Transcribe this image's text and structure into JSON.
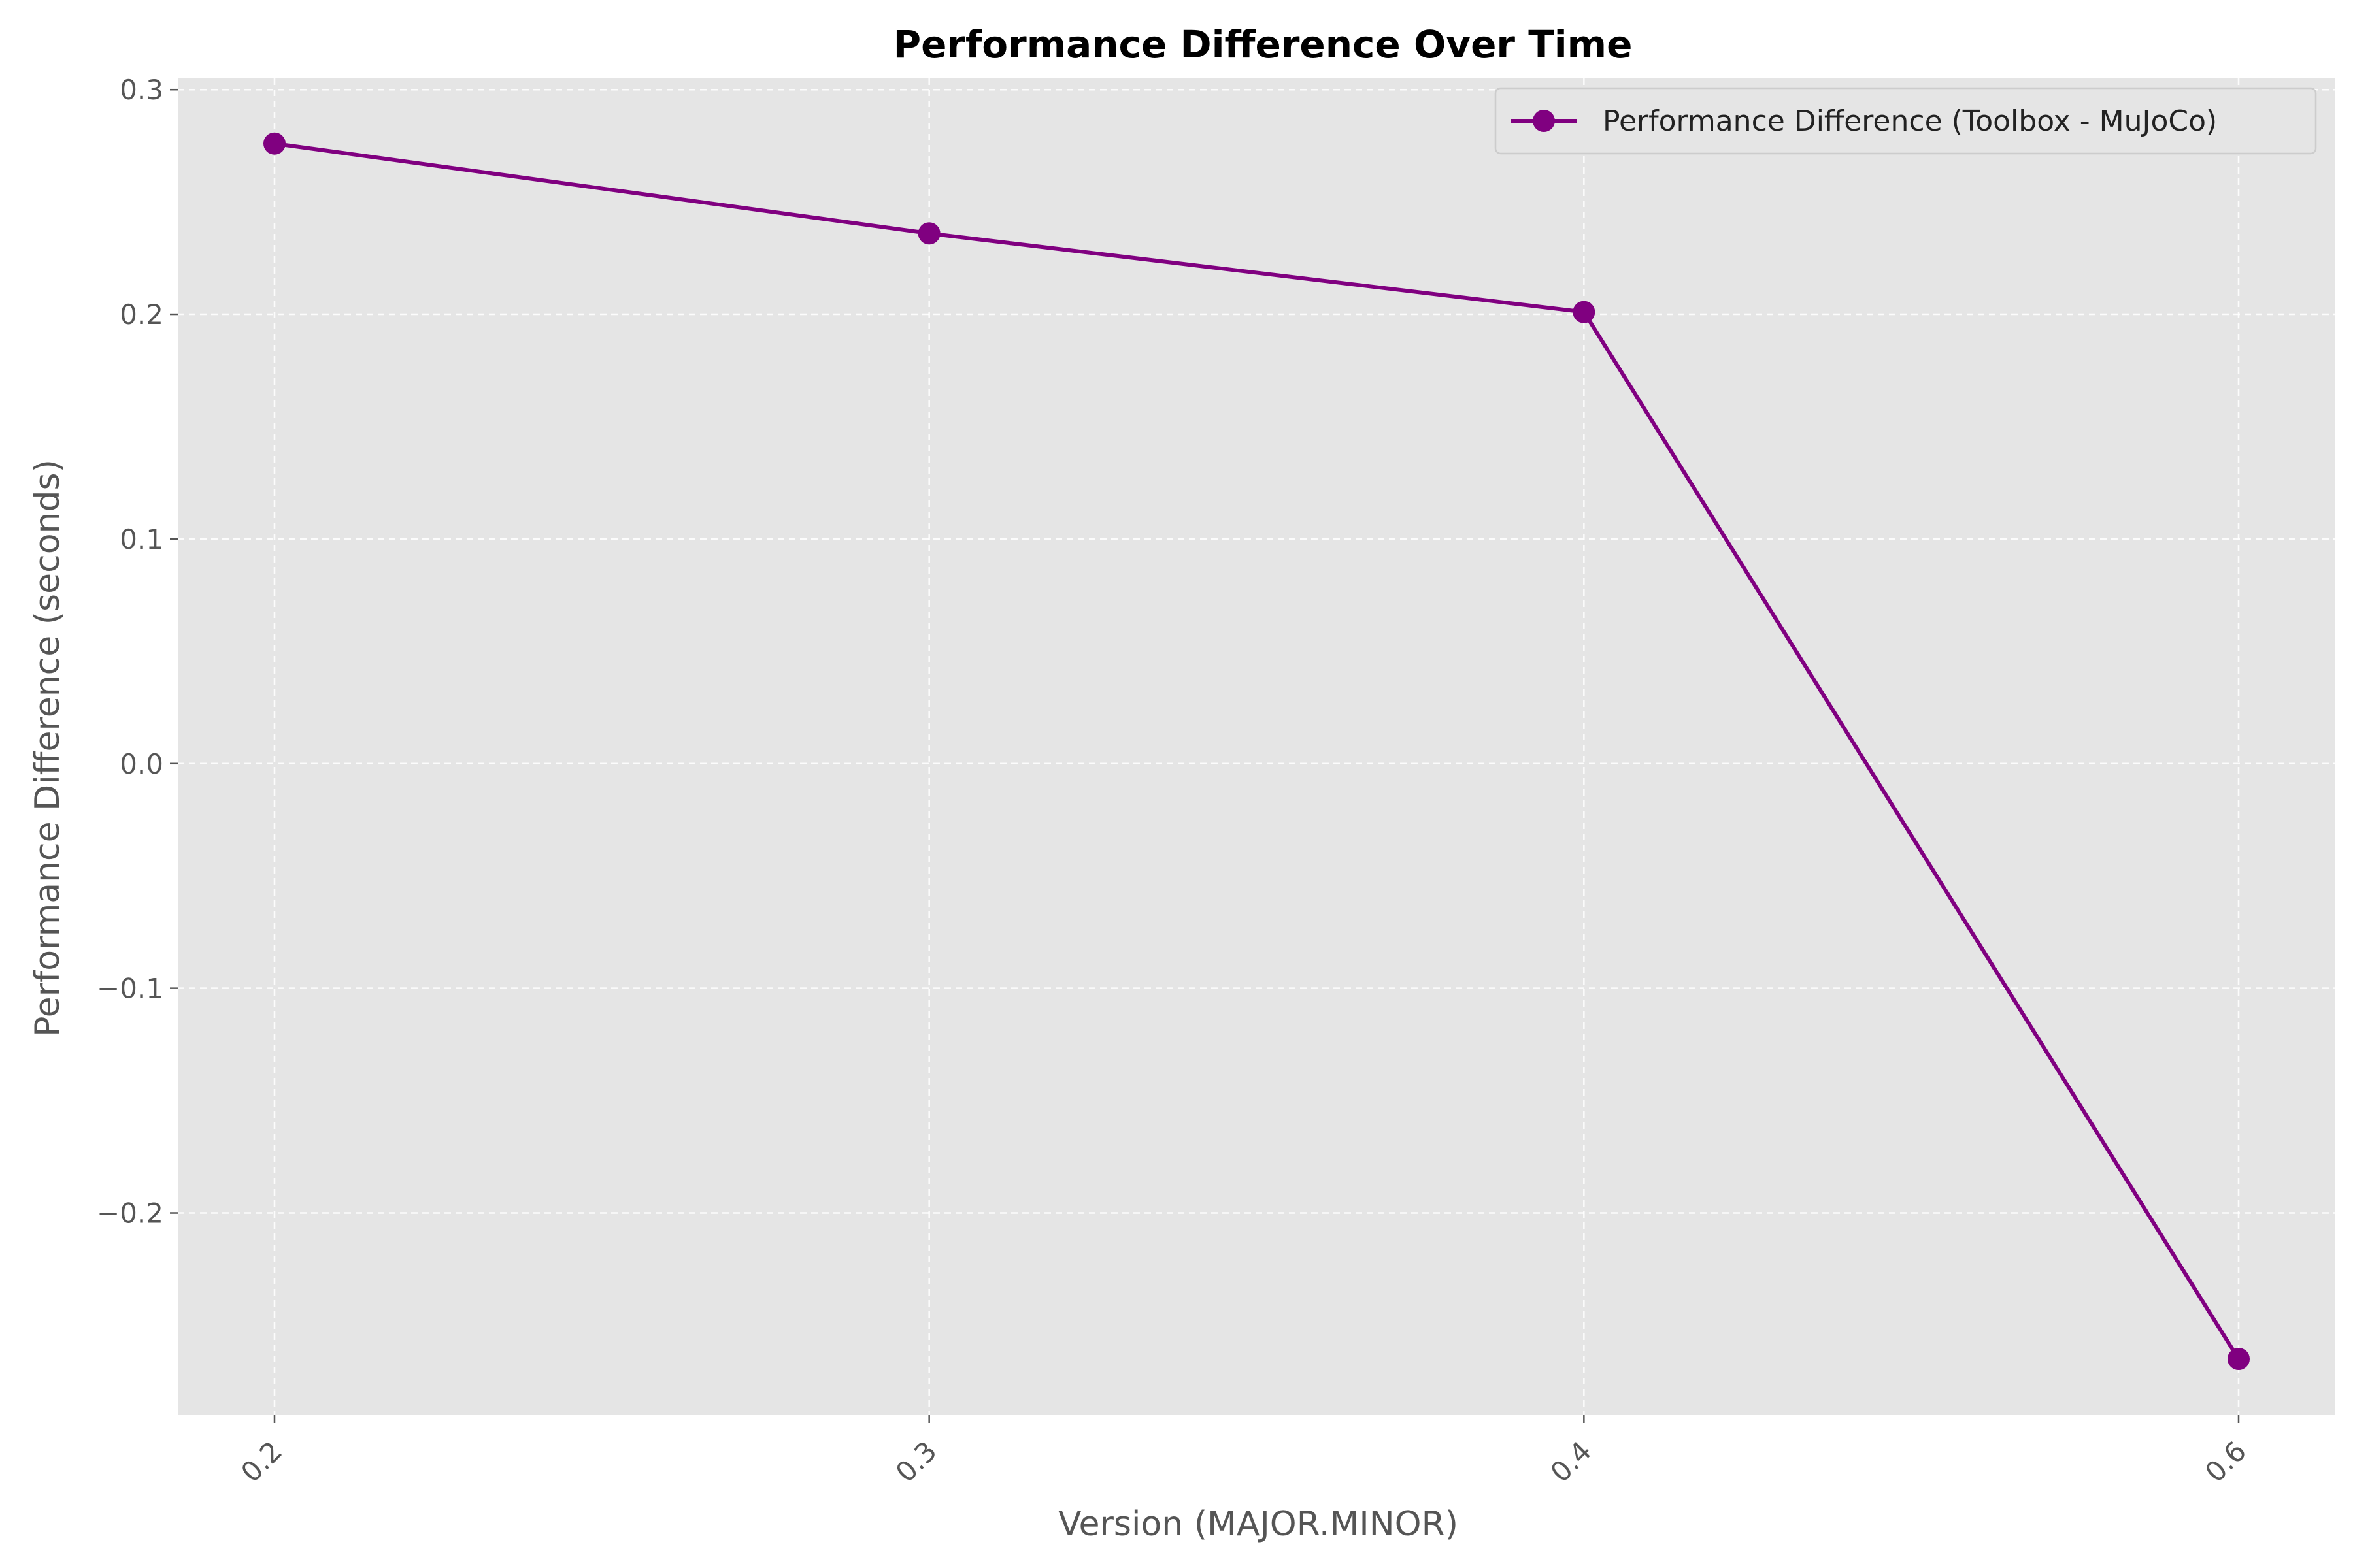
{
  "chart_data": {
    "type": "line",
    "title": "Performance Difference Over Time",
    "xlabel": "Version (MAJOR.MINOR)",
    "ylabel": "Performance Difference (seconds)",
    "categories": [
      "0.2",
      "0.3",
      "0.4",
      "0.6"
    ],
    "series": [
      {
        "name": "Performance Difference (Toolbox - MuJoCo)",
        "values": [
          0.276,
          0.236,
          0.201,
          -0.265
        ],
        "color": "#800080",
        "marker": "circle"
      }
    ],
    "ylim": [
      -0.29,
      0.305
    ],
    "yticks": [
      -0.2,
      -0.1,
      0.0,
      0.1,
      0.2,
      0.3
    ],
    "ytick_labels": [
      "−0.2",
      "−0.1",
      "0.0",
      "0.1",
      "0.2",
      "0.3"
    ],
    "grid": true,
    "legend_position": "top-right",
    "plot_background": "#e5e5e5",
    "x_tick_rotation_deg": 45
  }
}
